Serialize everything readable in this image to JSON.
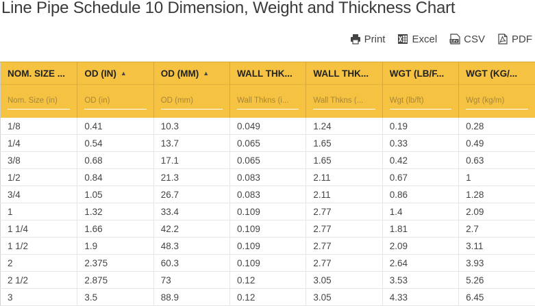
{
  "page": {
    "title": "Line Pipe Schedule 10 Dimension, Weight and Thickness Chart"
  },
  "toolbar": {
    "print_label": "Print",
    "excel_label": "Excel",
    "csv_label": "CSV",
    "pdf_label": "PDF"
  },
  "colors": {
    "header_bg": "#f5c242",
    "text": "#444444"
  },
  "columns": [
    {
      "label": "NOM. SIZE ...",
      "sort": "",
      "filter_placeholder": "Nom. Size (in)"
    },
    {
      "label": "OD (IN)",
      "sort": "▲",
      "filter_placeholder": "OD (in)"
    },
    {
      "label": "OD (MM)",
      "sort": "▲",
      "filter_placeholder": "OD (mm)"
    },
    {
      "label": "WALL THK...",
      "sort": "",
      "filter_placeholder": "Wall Thkns (i..."
    },
    {
      "label": "WALL THK...",
      "sort": "",
      "filter_placeholder": "Wall Thkns (..."
    },
    {
      "label": "WGT (LB/F...",
      "sort": "",
      "filter_placeholder": "Wgt (lb/ft)"
    },
    {
      "label": "WGT (KG/...",
      "sort": "",
      "filter_placeholder": "Wgt (kg/m)"
    }
  ],
  "rows": [
    [
      "1/8",
      "0.41",
      "10.3",
      "0.049",
      "1.24",
      "0.19",
      "0.28"
    ],
    [
      "1/4",
      "0.54",
      "13.7",
      "0.065",
      "1.65",
      "0.33",
      "0.49"
    ],
    [
      "3/8",
      "0.68",
      "17.1",
      "0.065",
      "1.65",
      "0.42",
      "0.63"
    ],
    [
      "1/2",
      "0.84",
      "21.3",
      "0.083",
      "2.11",
      "0.67",
      "1"
    ],
    [
      "3/4",
      "1.05",
      "26.7",
      "0.083",
      "2.11",
      "0.86",
      "1.28"
    ],
    [
      "1",
      "1.32",
      "33.4",
      "0.109",
      "2.77",
      "1.4",
      "2.09"
    ],
    [
      "1 1/4",
      "1.66",
      "42.2",
      "0.109",
      "2.77",
      "1.81",
      "2.7"
    ],
    [
      "1 1/2",
      "1.9",
      "48.3",
      "0.109",
      "2.77",
      "2.09",
      "3.11"
    ],
    [
      "2",
      "2.375",
      "60.3",
      "0.109",
      "2.77",
      "2.64",
      "3.93"
    ],
    [
      "2 1/2",
      "2.875",
      "73",
      "0.12",
      "3.05",
      "3.53",
      "5.26"
    ],
    [
      "3",
      "3.5",
      "88.9",
      "0.12",
      "3.05",
      "4.33",
      "6.45"
    ]
  ]
}
